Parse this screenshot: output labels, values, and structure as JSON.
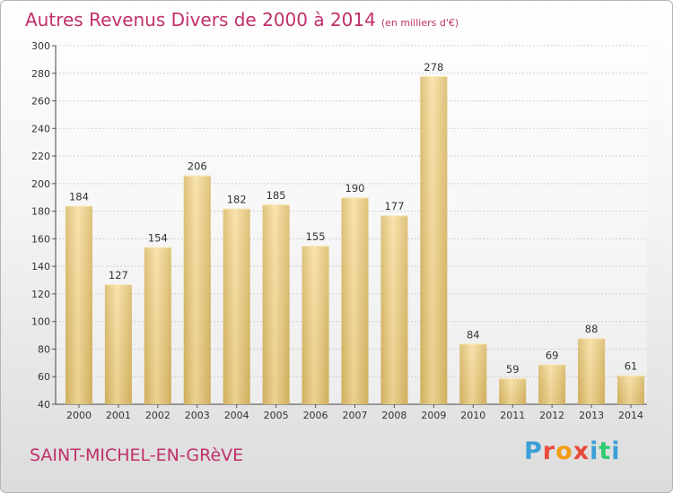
{
  "header": {
    "title": "Autres Revenus Divers de 2000 à 2014",
    "unit": "(en milliers d'€)"
  },
  "footer": {
    "commune": "SAINT-MICHEL-EN-GRèVE",
    "logo_text": "Proxiti"
  },
  "colors": {
    "title": "#c0306b",
    "bar_light": "#f7dfa0",
    "bar_dark": "#d9b766",
    "logo_letters": [
      "#3aa0d6",
      "#e74c3c",
      "#f39c12",
      "#e74c3c",
      "#3aa0d6",
      "#2ecc71",
      "#3aa0d6"
    ]
  },
  "chart_data": {
    "type": "bar",
    "title": "Autres Revenus Divers de 2000 à 2014",
    "unit": "(en milliers d'€)",
    "categories": [
      "2000",
      "2001",
      "2002",
      "2003",
      "2004",
      "2005",
      "2006",
      "2007",
      "2008",
      "2009",
      "2010",
      "2011",
      "2012",
      "2013",
      "2014"
    ],
    "values": [
      184,
      127,
      154,
      206,
      182,
      185,
      155,
      190,
      177,
      278,
      84,
      59,
      69,
      88,
      61
    ],
    "ylim": [
      40,
      300
    ],
    "yticks": [
      40,
      60,
      80,
      100,
      120,
      140,
      160,
      180,
      200,
      220,
      240,
      260,
      280,
      300
    ],
    "grid": true,
    "legend": "none"
  }
}
